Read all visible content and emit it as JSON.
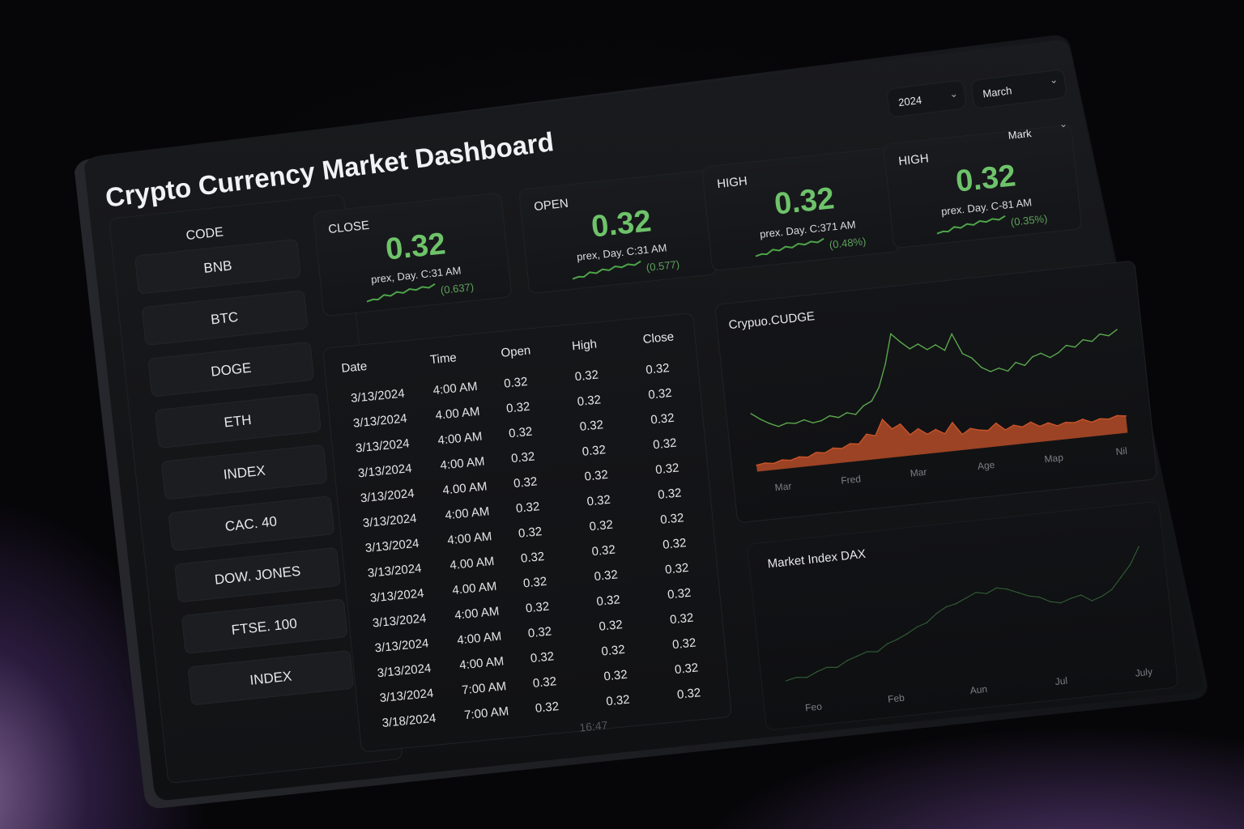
{
  "title": "Crypto Currency Market Dashboard",
  "filters": {
    "year": "2024",
    "month": "March",
    "extra": "Mark"
  },
  "code_list": {
    "header": "CODE",
    "items": [
      "BNB",
      "BTC",
      "DOGE",
      "ETH",
      "INDEX",
      "CAC. 40",
      "DOW. JONES",
      "FTSE. 100",
      "INDEX"
    ]
  },
  "cards": [
    {
      "label": "CLOSE",
      "value": "0.32",
      "sub": "prex, Day. C:31 AM",
      "change": "(0.637)"
    },
    {
      "label": "OPEN",
      "value": "0.32",
      "sub": "prex, Day. C:31 AM",
      "change": "(0.577)"
    },
    {
      "label": "HIGH",
      "value": "0.32",
      "sub": "prex. Day. C:371 AM",
      "change": "(0.48%)"
    },
    {
      "label": "HIGH",
      "value": "0.32",
      "sub": "prex. Day. C-81 AM",
      "change": "(0.35%)"
    }
  ],
  "table": {
    "headers": [
      "Date",
      "Time",
      "Open",
      "High",
      "Close"
    ],
    "rows": [
      [
        "3/13/2024",
        "4:00 AM",
        "0.32",
        "0.32",
        "0.32"
      ],
      [
        "3/13/2024",
        "4.00 AM",
        "0.32",
        "0.32",
        "0.32"
      ],
      [
        "3/13/2024",
        "4:00 AM",
        "0.32",
        "0.32",
        "0.32"
      ],
      [
        "3/13/2024",
        "4:00 AM",
        "0.32",
        "0.32",
        "0.32"
      ],
      [
        "3/13/2024",
        "4.00 AM",
        "0.32",
        "0.32",
        "0.32"
      ],
      [
        "3/13/2024",
        "4:00 AM",
        "0.32",
        "0.32",
        "0.32"
      ],
      [
        "3/13/2024",
        "4:00 AM",
        "0.32",
        "0.32",
        "0.32"
      ],
      [
        "3/13/2024",
        "4.00 AM",
        "0.32",
        "0.32",
        "0.32"
      ],
      [
        "3/13/2024",
        "4.00 AM",
        "0.32",
        "0.32",
        "0.32"
      ],
      [
        "3/13/2024",
        "4:00 AM",
        "0.32",
        "0.32",
        "0.32"
      ],
      [
        "3/13/2024",
        "4:00 AM",
        "0.32",
        "0.32",
        "0.32"
      ],
      [
        "3/13/2024",
        "4:00 AM",
        "0.32",
        "0.32",
        "0.32"
      ],
      [
        "3/13/2024",
        "7:00 AM",
        "0.32",
        "0.32",
        "0.32"
      ],
      [
        "3/18/2024",
        "7:00 AM",
        "0.32",
        "0.32",
        "0.32"
      ]
    ],
    "footer": "16:47"
  },
  "chart_data": [
    {
      "type": "line",
      "title": "Crypuo.CUDGE",
      "x_ticks": [
        "Mar",
        "Fred",
        "Mar",
        "Age",
        "Map",
        "Nil"
      ],
      "series": [
        {
          "values": [
            0.45,
            0.4,
            0.36,
            0.33,
            0.35,
            0.34,
            0.36,
            0.33,
            0.34,
            0.37,
            0.35,
            0.38,
            0.36,
            0.42,
            0.45,
            0.55,
            0.72,
            0.95,
            0.88,
            0.82,
            0.85,
            0.8,
            0.83,
            0.78,
            0.9,
            0.74,
            0.7,
            0.62,
            0.58,
            0.6,
            0.57,
            0.63,
            0.6,
            0.66,
            0.68,
            0.64,
            0.67,
            0.72,
            0.7,
            0.75,
            0.73,
            0.78,
            0.76,
            0.8
          ]
        },
        {
          "values": [
            0.05,
            0.06,
            0.05,
            0.07,
            0.06,
            0.08,
            0.07,
            0.1,
            0.09,
            0.12,
            0.11,
            0.14,
            0.13,
            0.2,
            0.18,
            0.3,
            0.22,
            0.25,
            0.16,
            0.2,
            0.15,
            0.18,
            0.14,
            0.22,
            0.12,
            0.16,
            0.14,
            0.13,
            0.18,
            0.12,
            0.15,
            0.13,
            0.16,
            0.12,
            0.14,
            0.11,
            0.13,
            0.12,
            0.14,
            0.11,
            0.13,
            0.12,
            0.14,
            0.13
          ]
        }
      ],
      "colors": [
        "#5aa64d",
        "#c9542a"
      ]
    },
    {
      "type": "line",
      "title": "Market Index DAX",
      "x_ticks": [
        "Feo",
        "Feb",
        "Aun",
        "Jul",
        "July"
      ],
      "series": [
        {
          "values": [
            0.1,
            0.12,
            0.11,
            0.15,
            0.18,
            0.17,
            0.22,
            0.25,
            0.28,
            0.27,
            0.33,
            0.36,
            0.4,
            0.45,
            0.48,
            0.55,
            0.6,
            0.62,
            0.66,
            0.7,
            0.68,
            0.72,
            0.7,
            0.66,
            0.62,
            0.6,
            0.55,
            0.53,
            0.56,
            0.58,
            0.52,
            0.55,
            0.6,
            0.7,
            0.8,
            0.95
          ]
        }
      ],
      "colors": [
        "#2f5a33"
      ]
    }
  ]
}
